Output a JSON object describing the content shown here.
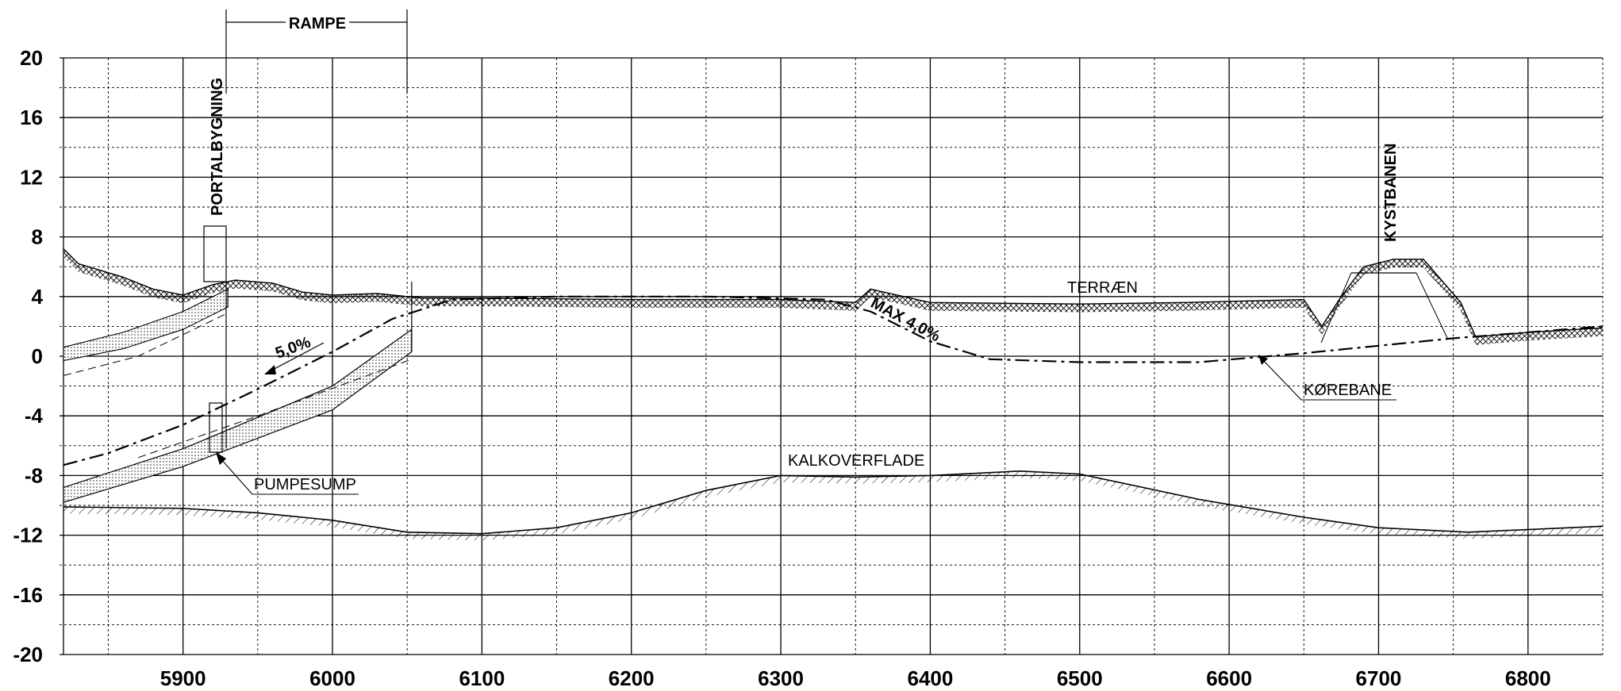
{
  "axes": {
    "y_ticks": [
      "20",
      "16",
      "12",
      "8",
      "4",
      "0",
      "-4",
      "-8",
      "-12",
      "-16",
      "-20"
    ],
    "x_ticks": [
      "5900",
      "6000",
      "6100",
      "6200",
      "6300",
      "6400",
      "6500",
      "6600",
      "6700",
      "6800"
    ],
    "x_range": [
      5820,
      6850
    ],
    "y_range": [
      -20,
      20
    ],
    "x_major_step": 100,
    "x_minor_step": 50,
    "y_major_step": 4,
    "y_minor_step": 2
  },
  "labels": {
    "rampe": "RAMPE",
    "portalbygning": "PORTALBYGNING",
    "kystbanen": "KYSTBANEN",
    "terraen": "TERRÆN",
    "max_grade": "MAX 4,0%",
    "grade": "5,0%",
    "korebane": "KØREBANE",
    "pumpesump": "PUMPESUMP",
    "kalkoverflade": "KALKOVERFLADE"
  },
  "profiles": {
    "terrain": [
      [
        5820,
        7.2
      ],
      [
        5830,
        6.2
      ],
      [
        5860,
        5.3
      ],
      [
        5880,
        4.5
      ],
      [
        5900,
        4.1
      ],
      [
        5920,
        4.8
      ],
      [
        5935,
        5.1
      ],
      [
        5960,
        4.9
      ],
      [
        5980,
        4.3
      ],
      [
        6000,
        4.1
      ],
      [
        6030,
        4.2
      ],
      [
        6060,
        3.9
      ],
      [
        6100,
        3.9
      ],
      [
        6200,
        3.8
      ],
      [
        6300,
        3.8
      ],
      [
        6350,
        3.6
      ],
      [
        6360,
        4.5
      ],
      [
        6400,
        3.6
      ],
      [
        6500,
        3.5
      ],
      [
        6570,
        3.6
      ],
      [
        6650,
        3.8
      ],
      [
        6662,
        2.0
      ],
      [
        6675,
        4.0
      ],
      [
        6690,
        6.0
      ],
      [
        6710,
        6.5
      ],
      [
        6730,
        6.5
      ],
      [
        6755,
        3.6
      ],
      [
        6765,
        1.3
      ],
      [
        6800,
        1.6
      ],
      [
        6850,
        1.9
      ]
    ],
    "road": [
      [
        5820,
        -7.3
      ],
      [
        5850,
        -6.5
      ],
      [
        5900,
        -4.6
      ],
      [
        5950,
        -2.2
      ],
      [
        6000,
        0.3
      ],
      [
        6040,
        2.5
      ],
      [
        6080,
        3.8
      ],
      [
        6150,
        4.0
      ],
      [
        6250,
        4.0
      ],
      [
        6330,
        3.8
      ],
      [
        6360,
        3.0
      ],
      [
        6400,
        1.0
      ],
      [
        6440,
        -0.2
      ],
      [
        6500,
        -0.4
      ],
      [
        6580,
        -0.4
      ],
      [
        6650,
        0.2
      ],
      [
        6750,
        1.2
      ],
      [
        6850,
        2.0
      ]
    ],
    "chalk": [
      [
        5820,
        -10.1
      ],
      [
        5900,
        -10.2
      ],
      [
        5950,
        -10.5
      ],
      [
        6000,
        -11.0
      ],
      [
        6050,
        -11.8
      ],
      [
        6100,
        -11.9
      ],
      [
        6150,
        -11.5
      ],
      [
        6200,
        -10.5
      ],
      [
        6250,
        -9.0
      ],
      [
        6300,
        -8.0
      ],
      [
        6350,
        -8.1
      ],
      [
        6400,
        -8.0
      ],
      [
        6460,
        -7.7
      ],
      [
        6500,
        -7.9
      ],
      [
        6580,
        -9.6
      ],
      [
        6650,
        -10.8
      ],
      [
        6700,
        -11.5
      ],
      [
        6760,
        -11.8
      ],
      [
        6850,
        -11.4
      ]
    ],
    "wall_outer_top": [
      [
        5820,
        0.6
      ],
      [
        5860,
        1.6
      ],
      [
        5900,
        3.0
      ],
      [
        5930,
        4.5
      ]
    ],
    "wall_outer_bottom": [
      [
        5820,
        -0.3
      ],
      [
        5860,
        0.5
      ],
      [
        5900,
        1.8
      ],
      [
        5930,
        3.3
      ]
    ],
    "slab_top": [
      [
        5820,
        -8.8
      ],
      [
        5900,
        -6.2
      ],
      [
        6000,
        -2.0
      ],
      [
        6053,
        1.8
      ]
    ],
    "slab_bottom": [
      [
        5820,
        -9.8
      ],
      [
        5900,
        -7.4
      ],
      [
        6000,
        -3.6
      ],
      [
        6053,
        0.3
      ]
    ]
  }
}
